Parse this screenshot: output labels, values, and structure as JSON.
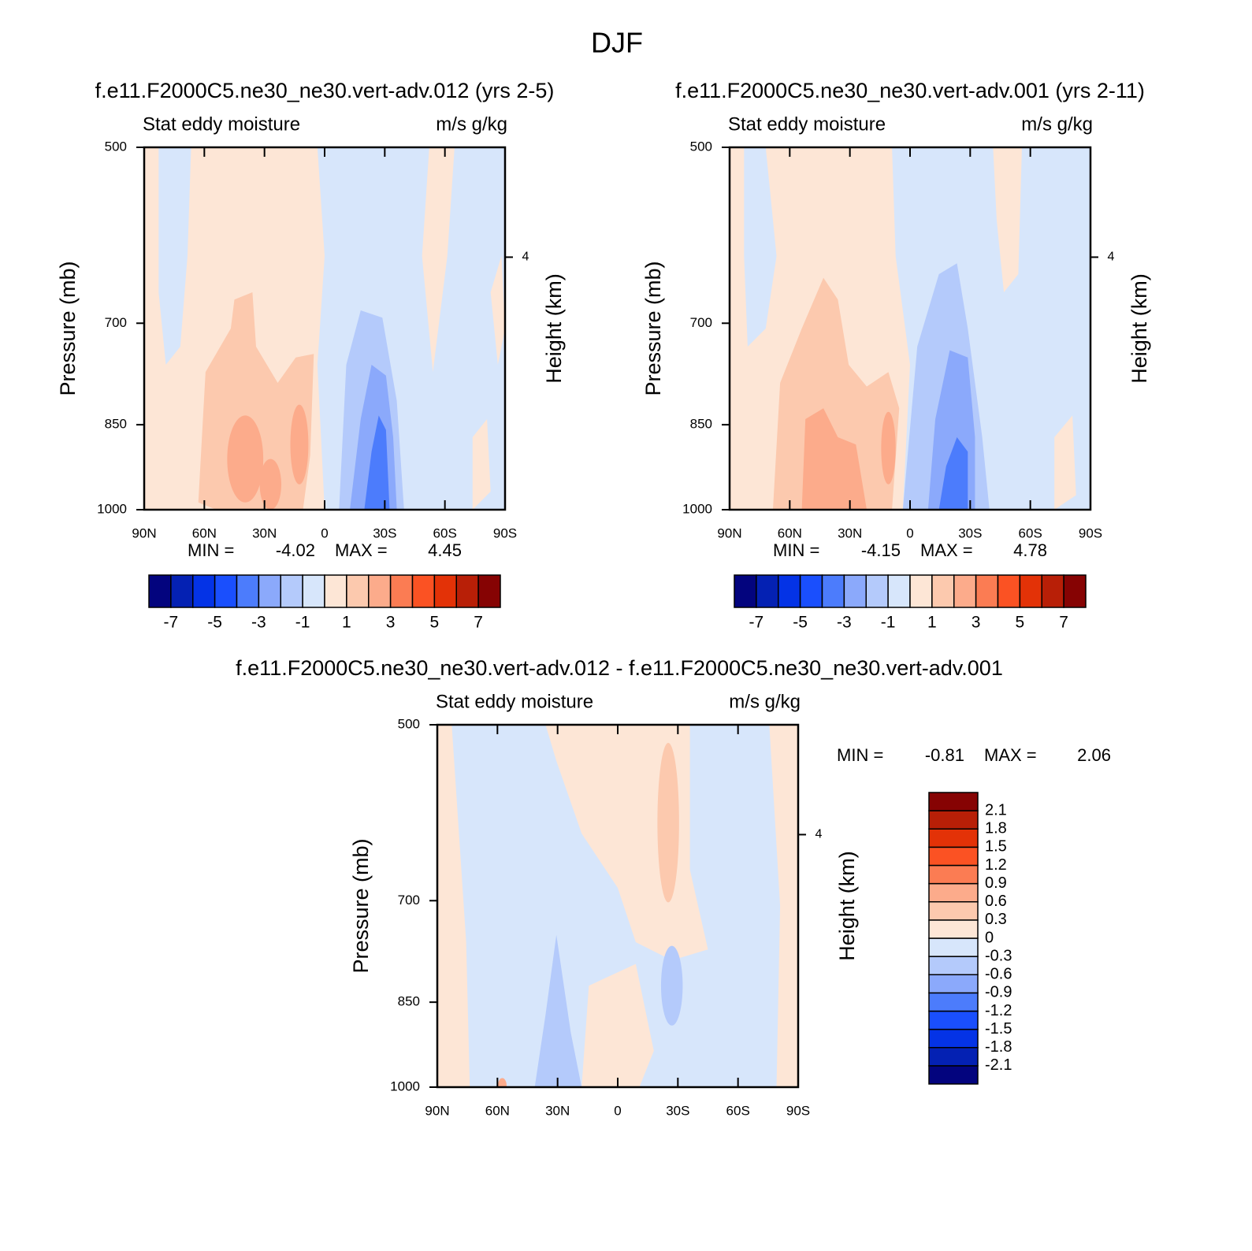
{
  "title": "DJF",
  "chart_data": [
    {
      "type": "contour",
      "title": "f.e11.F2000C5.ne30_ne30.vert-adv.012 (yrs 2-5)",
      "left_string": "Stat eddy moisture",
      "right_string": "m/s g/kg",
      "ylabel": "Pressure (mb)",
      "y2label": "Height (km)",
      "xlim": [
        90,
        -90
      ],
      "xticks": [
        {
          "value": 90,
          "label": "90N"
        },
        {
          "value": 60,
          "label": "60N"
        },
        {
          "value": 30,
          "label": "30N"
        },
        0,
        {
          "value": -30,
          "label": "30S"
        },
        {
          "value": -60,
          "label": "60S"
        },
        {
          "value": -90,
          "label": "90S"
        }
      ],
      "ylim": [
        1000,
        500
      ],
      "ylog": true,
      "yticks": [
        500,
        700,
        850,
        1000
      ],
      "y2lim": [
        0,
        5.74
      ],
      "y2ticks": [
        4
      ],
      "min_label": "MIN =",
      "min": -4.02,
      "max_label": "MAX =",
      "max": 4.45,
      "colorbar": {
        "orientation": "horizontal",
        "levels": [
          -7,
          -6,
          -5,
          -4,
          -3,
          -2,
          -1,
          0,
          1,
          2,
          3,
          4,
          5,
          6,
          7
        ],
        "ticks": [
          -7,
          -5,
          -3,
          -1,
          1,
          3,
          5,
          7
        ],
        "colors": [
          "#03047e",
          "#0421b3",
          "#0433e6",
          "#1a4ffd",
          "#4c7cfc",
          "#8ba9fb",
          "#b4cafb",
          "#d7e6fb",
          "#fde6d6",
          "#fcc9ae",
          "#fcab8b",
          "#fb7c53",
          "#fb5223",
          "#e33207",
          "#b81f07",
          "#860303"
        ]
      }
    },
    {
      "type": "contour",
      "title": "f.e11.F2000C5.ne30_ne30.vert-adv.001 (yrs 2-11)",
      "left_string": "Stat eddy moisture",
      "right_string": "m/s g/kg",
      "ylabel": "Pressure (mb)",
      "y2label": "Height (km)",
      "xlim": [
        90,
        -90
      ],
      "xticks": [
        {
          "value": 90,
          "label": "90N"
        },
        {
          "value": 60,
          "label": "60N"
        },
        {
          "value": 30,
          "label": "30N"
        },
        0,
        {
          "value": -30,
          "label": "30S"
        },
        {
          "value": -60,
          "label": "60S"
        },
        {
          "value": -90,
          "label": "90S"
        }
      ],
      "ylim": [
        1000,
        500
      ],
      "ylog": true,
      "yticks": [
        500,
        700,
        850,
        1000
      ],
      "y2lim": [
        0,
        5.74
      ],
      "y2ticks": [
        4
      ],
      "min_label": "MIN =",
      "min": -4.15,
      "max_label": "MAX =",
      "max": 4.78,
      "colorbar": {
        "orientation": "horizontal",
        "levels": [
          -7,
          -6,
          -5,
          -4,
          -3,
          -2,
          -1,
          0,
          1,
          2,
          3,
          4,
          5,
          6,
          7
        ],
        "ticks": [
          -7,
          -5,
          -3,
          -1,
          1,
          3,
          5,
          7
        ],
        "colors": [
          "#03047e",
          "#0421b3",
          "#0433e6",
          "#1a4ffd",
          "#4c7cfc",
          "#8ba9fb",
          "#b4cafb",
          "#d7e6fb",
          "#fde6d6",
          "#fcc9ae",
          "#fcab8b",
          "#fb7c53",
          "#fb5223",
          "#e33207",
          "#b81f07",
          "#860303"
        ]
      }
    },
    {
      "type": "contour",
      "title": "f.e11.F2000C5.ne30_ne30.vert-adv.012 - f.e11.F2000C5.ne30_ne30.vert-adv.001",
      "left_string": "Stat eddy moisture",
      "right_string": "m/s g/kg",
      "ylabel": "Pressure (mb)",
      "y2label": "Height (km)",
      "xlim": [
        90,
        -90
      ],
      "xticks": [
        {
          "value": 90,
          "label": "90N"
        },
        {
          "value": 60,
          "label": "60N"
        },
        {
          "value": 30,
          "label": "30N"
        },
        0,
        {
          "value": -30,
          "label": "30S"
        },
        {
          "value": -60,
          "label": "60S"
        },
        {
          "value": -90,
          "label": "90S"
        }
      ],
      "ylim": [
        1000,
        500
      ],
      "ylog": true,
      "yticks": [
        500,
        700,
        850,
        1000
      ],
      "y2lim": [
        0,
        5.74
      ],
      "y2ticks": [
        4
      ],
      "min_label": "MIN =",
      "min": -0.81,
      "max_label": "MAX =",
      "max": 2.06,
      "colorbar": {
        "orientation": "vertical",
        "levels": [
          -2.1,
          -1.8,
          -1.5,
          -1.2,
          -0.9,
          -0.6,
          -0.3,
          0,
          0.3,
          0.6,
          0.9,
          1.2,
          1.5,
          1.8,
          2.1
        ],
        "ticks": [
          -2.1,
          -1.8,
          -1.5,
          -1.2,
          -0.9,
          -0.6,
          -0.3,
          0,
          0.3,
          0.6,
          0.9,
          1.2,
          1.5,
          1.8,
          2.1
        ],
        "colors": [
          "#03047e",
          "#0421b3",
          "#0433e6",
          "#1a4ffd",
          "#4c7cfc",
          "#8ba9fb",
          "#b4cafb",
          "#d7e6fb",
          "#fde6d6",
          "#fcc9ae",
          "#fcab8b",
          "#fb7c53",
          "#fb5223",
          "#e33207",
          "#b81f07",
          "#860303"
        ]
      }
    }
  ]
}
